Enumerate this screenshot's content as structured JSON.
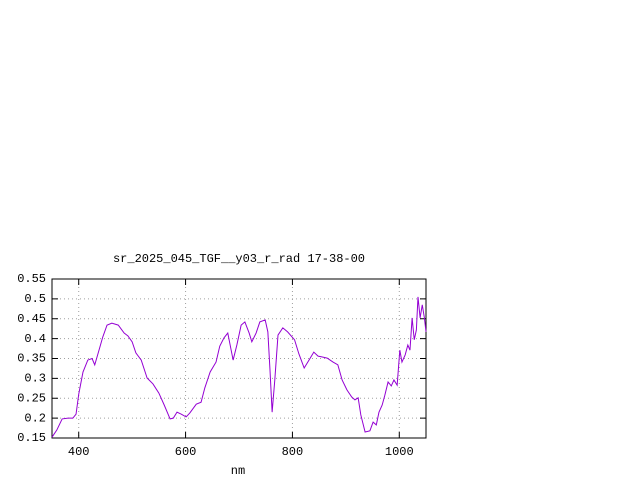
{
  "chart_data": {
    "type": "line",
    "title": "sr_2025_045_TGF__y03_r_rad 17-38-00",
    "x_label": "nm",
    "color": "#9400d3",
    "grid": true,
    "xlim": [
      350,
      1050
    ],
    "xticks": [
      400,
      600,
      800,
      1000
    ],
    "ylim": [
      0.15,
      0.55
    ],
    "yticks": [
      0.15,
      0.2,
      0.25,
      0.3,
      0.35,
      0.4,
      0.45,
      0.5,
      0.55
    ],
    "x": [
      350,
      359,
      369,
      380,
      389,
      395,
      400,
      408,
      417,
      425,
      430,
      438,
      445,
      453,
      462,
      474,
      485,
      492,
      500,
      507,
      517,
      528,
      539,
      550,
      560,
      571,
      577,
      584,
      592,
      601,
      608,
      620,
      629,
      636,
      646,
      657,
      664,
      672,
      679,
      689,
      696,
      704,
      711,
      719,
      724,
      732,
      739,
      749,
      754,
      758,
      762,
      767,
      773,
      782,
      791,
      804,
      812,
      822,
      831,
      840,
      848,
      855,
      865,
      876,
      885,
      893,
      902,
      911,
      917,
      923,
      928,
      936,
      945,
      951,
      957,
      962,
      968,
      973,
      979,
      985,
      990,
      996,
      1001,
      1005,
      1011,
      1016,
      1020,
      1024,
      1028,
      1032,
      1035,
      1039,
      1043,
      1047,
      1050
    ],
    "values": [
      0.152,
      0.17,
      0.198,
      0.2,
      0.2,
      0.21,
      0.26,
      0.316,
      0.346,
      0.35,
      0.334,
      0.371,
      0.404,
      0.434,
      0.439,
      0.434,
      0.414,
      0.407,
      0.392,
      0.364,
      0.346,
      0.301,
      0.286,
      0.263,
      0.233,
      0.198,
      0.2,
      0.215,
      0.21,
      0.203,
      0.213,
      0.235,
      0.24,
      0.276,
      0.316,
      0.341,
      0.381,
      0.402,
      0.414,
      0.346,
      0.384,
      0.434,
      0.442,
      0.414,
      0.392,
      0.414,
      0.442,
      0.447,
      0.417,
      0.321,
      0.215,
      0.296,
      0.409,
      0.427,
      0.417,
      0.397,
      0.362,
      0.326,
      0.346,
      0.366,
      0.356,
      0.354,
      0.351,
      0.341,
      0.334,
      0.296,
      0.271,
      0.253,
      0.246,
      0.251,
      0.208,
      0.165,
      0.168,
      0.19,
      0.183,
      0.215,
      0.233,
      0.258,
      0.291,
      0.281,
      0.296,
      0.283,
      0.371,
      0.341,
      0.359,
      0.384,
      0.371,
      0.452,
      0.397,
      0.422,
      0.505,
      0.452,
      0.485,
      0.452,
      0.417
    ]
  }
}
